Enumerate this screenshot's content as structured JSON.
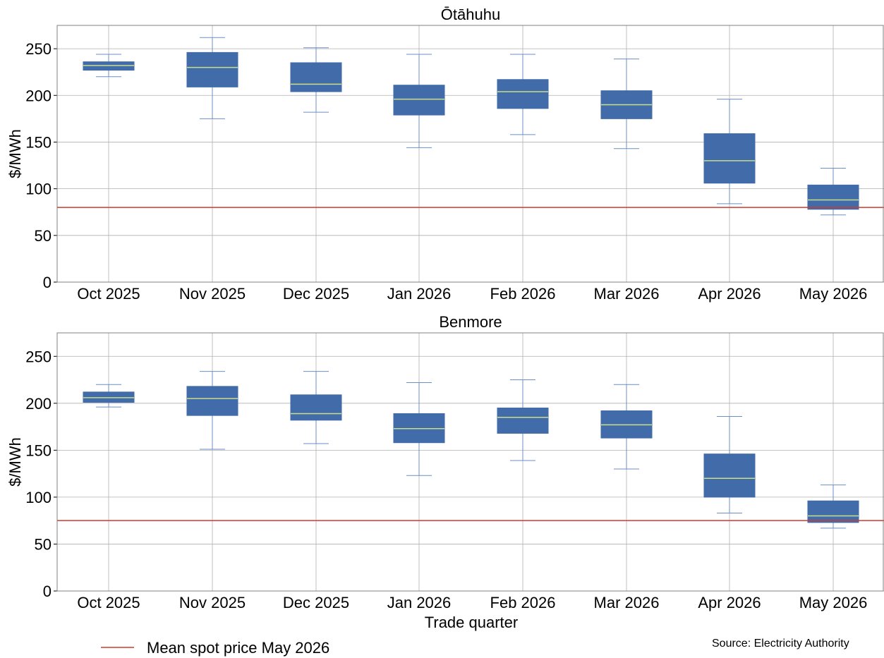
{
  "chart_data": {
    "type": "box",
    "categories": [
      "Oct 2025",
      "Nov 2025",
      "Dec 2025",
      "Jan 2026",
      "Feb 2026",
      "Mar 2026",
      "Apr 2026",
      "May 2026"
    ],
    "ylabel": "$/MWh",
    "xlabel": "Trade quarter",
    "ylim": [
      0,
      275
    ],
    "yticks": [
      0,
      50,
      100,
      150,
      200,
      250
    ],
    "grid": true,
    "colors": {
      "box": "#416ba9",
      "median": "#c9dd8a",
      "whisker": "#6b8fc4",
      "grid": "#b0b0b0",
      "mean_line": "#d03a2c"
    },
    "legend": {
      "label": "Mean spot price May 2026",
      "placement": "bottom-left"
    },
    "source": "Source: Electricity Authority",
    "panels": [
      {
        "title": "Ōtāhuhu",
        "mean_spot_price": 80,
        "boxes": [
          {
            "min": 220,
            "q1": 227,
            "median": 232,
            "q3": 236,
            "max": 244
          },
          {
            "min": 175,
            "q1": 209,
            "median": 230,
            "q3": 246,
            "max": 262
          },
          {
            "min": 182,
            "q1": 204,
            "median": 212,
            "q3": 235,
            "max": 251
          },
          {
            "min": 144,
            "q1": 179,
            "median": 196,
            "q3": 211,
            "max": 244
          },
          {
            "min": 158,
            "q1": 186,
            "median": 204,
            "q3": 217,
            "max": 244
          },
          {
            "min": 143,
            "q1": 175,
            "median": 190,
            "q3": 205,
            "max": 239
          },
          {
            "min": 84,
            "q1": 106,
            "median": 130,
            "q3": 159,
            "max": 196
          },
          {
            "min": 72,
            "q1": 78,
            "median": 88,
            "q3": 104,
            "max": 122
          }
        ]
      },
      {
        "title": "Benmore",
        "mean_spot_price": 75,
        "boxes": [
          {
            "min": 196,
            "q1": 201,
            "median": 206,
            "q3": 212,
            "max": 220
          },
          {
            "min": 151,
            "q1": 187,
            "median": 205,
            "q3": 218,
            "max": 234
          },
          {
            "min": 157,
            "q1": 182,
            "median": 189,
            "q3": 209,
            "max": 234
          },
          {
            "min": 123,
            "q1": 158,
            "median": 173,
            "q3": 189,
            "max": 222
          },
          {
            "min": 139,
            "q1": 168,
            "median": 185,
            "q3": 195,
            "max": 225
          },
          {
            "min": 130,
            "q1": 163,
            "median": 177,
            "q3": 192,
            "max": 220
          },
          {
            "min": 83,
            "q1": 100,
            "median": 120,
            "q3": 146,
            "max": 186
          },
          {
            "min": 67,
            "q1": 73,
            "median": 80,
            "q3": 96,
            "max": 113
          }
        ]
      }
    ]
  }
}
